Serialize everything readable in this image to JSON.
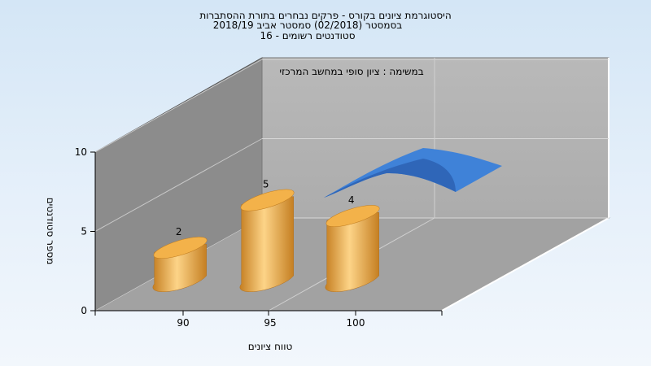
{
  "chart_data": {
    "type": "bar",
    "title_lines": [
      "היסטוגרמת ציונים בקורס - פרקים נבחרים בתורת ההסתברות",
      "בסמסטר  (02/2018)  סמסטר אביב 2018/19",
      "סטודנטים רשומים - 16"
    ],
    "annotation": "במשימה : ציון סופי במחשב המרכזי",
    "xlabel": "טווח ציונים",
    "ylabel": "מספר סטודנטים",
    "categories": [
      "90",
      "95",
      "100"
    ],
    "values": [
      2,
      5,
      4
    ],
    "ylim": [
      0,
      10
    ],
    "yticks": [
      0,
      5,
      10
    ],
    "bar_color": "#e8a33a",
    "curve_color": "#3572c4"
  }
}
